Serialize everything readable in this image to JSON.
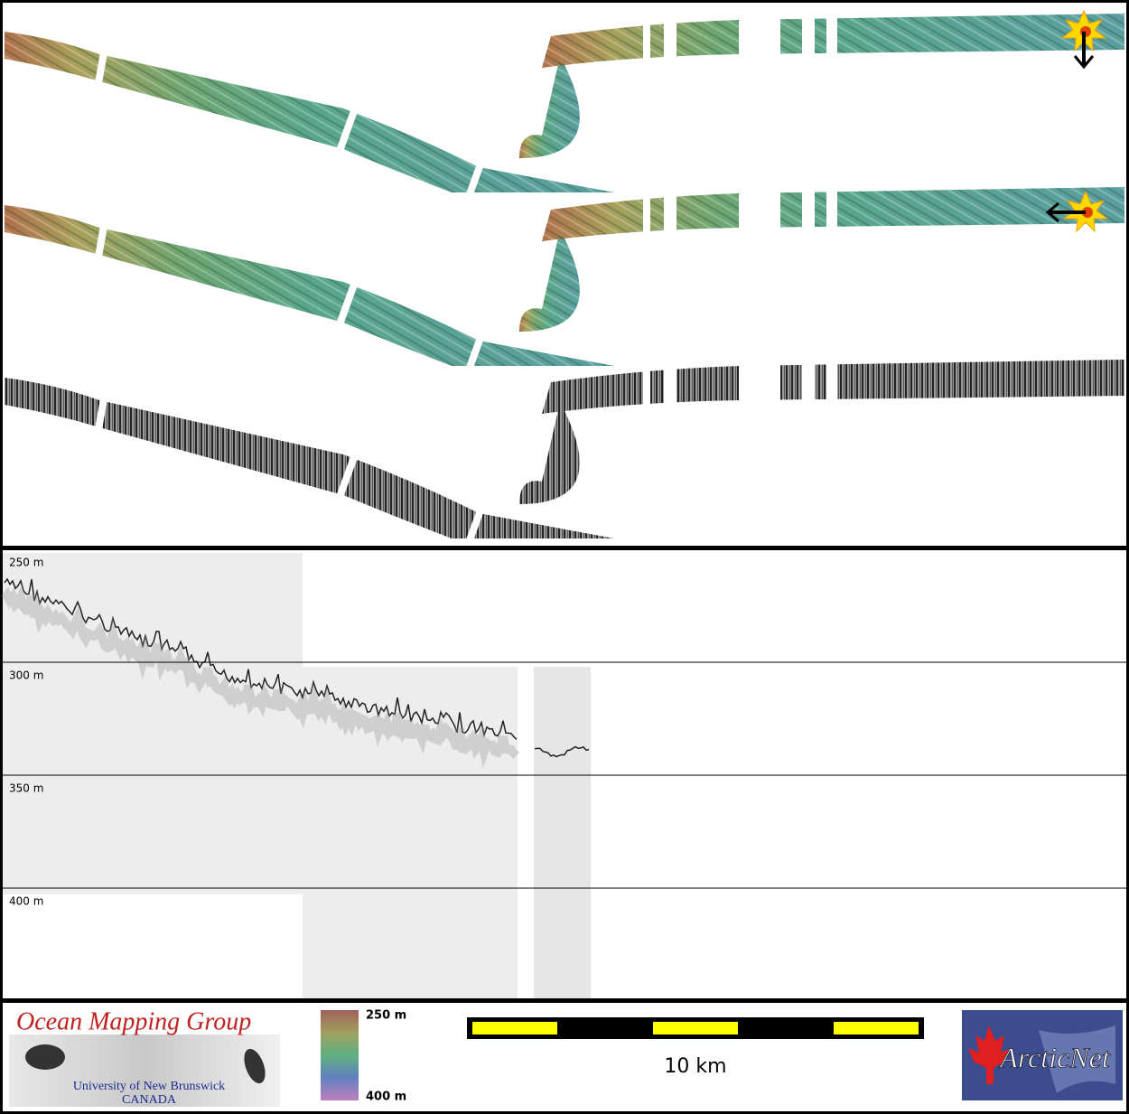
{
  "profile": {
    "depth_labels": [
      "250 m",
      "300 m",
      "350 m",
      "400 m"
    ]
  },
  "logo": {
    "title": "Ocean Mapping Group",
    "university": "University of New Brunswick",
    "country": "CANADA"
  },
  "colorbar": {
    "top_label": "250 m",
    "bottom_label": "400 m"
  },
  "scale_bar": {
    "label": "10 km"
  },
  "partner_logo": {
    "label": "ArcticNet"
  }
}
